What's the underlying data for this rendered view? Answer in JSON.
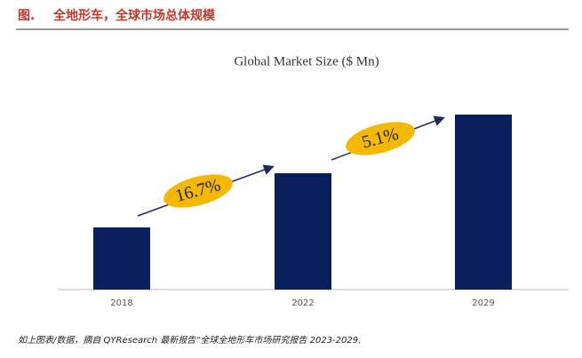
{
  "header": {
    "figure_label": "图.",
    "title": "全地形车，全球市场总体规模"
  },
  "chart_data": {
    "type": "bar",
    "title": "Global Market Size ($ Mn)",
    "categories": [
      "2018",
      "2022",
      "2029"
    ],
    "values": [
      70,
      131,
      197
    ],
    "color": "#0b1f5c",
    "annotations": [
      {
        "text": "16.7%"
      },
      {
        "text": "5.1%"
      }
    ],
    "annotation_color": "#f5b800"
  },
  "source": "如上图表/数据，摘自 QYResearch 最新报告“全球全地形车市场研究报告 2023-2029."
}
